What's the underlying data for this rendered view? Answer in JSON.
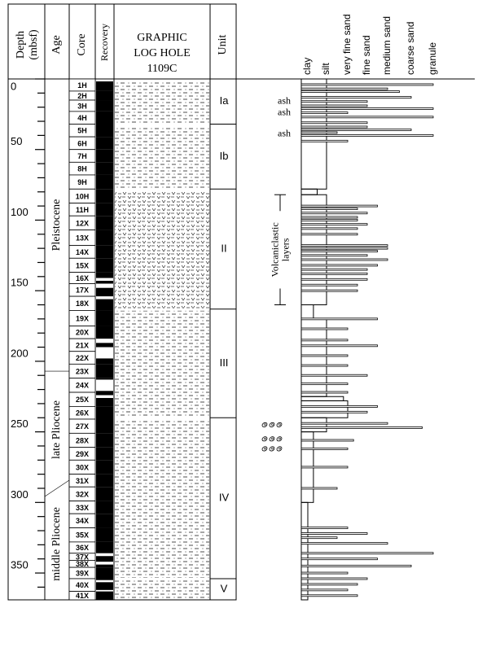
{
  "headers": {
    "depth": "Depth",
    "depth_unit": "(mbsf)",
    "age": "Age",
    "core": "Core",
    "recovery": "Recovery",
    "graphic": [
      "GRAPHIC",
      "LOG HOLE",
      "1109C"
    ],
    "unit": "Unit"
  },
  "depth": {
    "lim": [
      0,
      369
    ],
    "ticks": [
      0,
      50,
      100,
      150,
      200,
      250,
      300,
      350
    ],
    "minor_ticks": [
      10,
      20,
      30,
      40,
      60,
      70,
      80,
      90,
      110,
      120,
      130,
      140,
      160,
      170,
      180,
      190,
      210,
      220,
      230,
      240,
      260,
      270,
      280,
      290,
      310,
      320,
      330,
      340,
      360
    ]
  },
  "ages": [
    {
      "name": "Pleistocene",
      "top": 0
    },
    {
      "name": "late Pliocene",
      "top": 207
    },
    {
      "name": "middle Pliocene",
      "top": 290
    }
  ],
  "cores": [
    {
      "label": "1H",
      "top": 0
    },
    {
      "label": "2H",
      "top": 8.6
    },
    {
      "label": "3H",
      "top": 15
    },
    {
      "label": "4H",
      "top": 23
    },
    {
      "label": "5H",
      "top": 32
    },
    {
      "label": "6H",
      "top": 41
    },
    {
      "label": "7H",
      "top": 50
    },
    {
      "label": "8H",
      "top": 59
    },
    {
      "label": "9H",
      "top": 68
    },
    {
      "label": "10H",
      "top": 78
    },
    {
      "label": "11H",
      "top": 88
    },
    {
      "label": "12X",
      "top": 97
    },
    {
      "label": "13X",
      "top": 107
    },
    {
      "label": "14X",
      "top": 118
    },
    {
      "label": "15X",
      "top": 127
    },
    {
      "label": "16X",
      "top": 137
    },
    {
      "label": "17X",
      "top": 145
    },
    {
      "label": "18X",
      "top": 154
    },
    {
      "label": "19X",
      "top": 164
    },
    {
      "label": "20X",
      "top": 175
    },
    {
      "label": "21X",
      "top": 184
    },
    {
      "label": "22X",
      "top": 193
    },
    {
      "label": "23X",
      "top": 202
    },
    {
      "label": "24X",
      "top": 212
    },
    {
      "label": "25X",
      "top": 222
    },
    {
      "label": "26X",
      "top": 232
    },
    {
      "label": "27X",
      "top": 241
    },
    {
      "label": "28X",
      "top": 251
    },
    {
      "label": "29X",
      "top": 261
    },
    {
      "label": "30X",
      "top": 270
    },
    {
      "label": "31X",
      "top": 280
    },
    {
      "label": "32X",
      "top": 289
    },
    {
      "label": "33X",
      "top": 299
    },
    {
      "label": "34X",
      "top": 308
    },
    {
      "label": "35X",
      "top": 318
    },
    {
      "label": "36X",
      "top": 328
    },
    {
      "label": "37X",
      "top": 336
    },
    {
      "label": "38X",
      "top": 341
    },
    {
      "label": "39X",
      "top": 346
    },
    {
      "label": "40X",
      "top": 354
    },
    {
      "label": "41X",
      "top": 363
    }
  ],
  "recovery_gaps": [
    [
      141,
      143
    ],
    [
      145,
      148
    ],
    [
      154,
      156
    ],
    [
      184,
      187
    ],
    [
      190,
      198
    ],
    [
      213,
      221
    ],
    [
      224,
      226
    ],
    [
      336,
      338
    ],
    [
      342,
      344
    ],
    [
      355,
      356.5
    ],
    [
      362,
      363
    ]
  ],
  "units": [
    {
      "label": "Ia",
      "top": 0
    },
    {
      "label": "Ib",
      "top": 32
    },
    {
      "label": "II",
      "top": 78
    },
    {
      "label": "III",
      "top": 163
    },
    {
      "label": "IV",
      "top": 240
    },
    {
      "label": "V",
      "top": 354
    }
  ],
  "lithology": [
    {
      "top": 0,
      "pattern": "dashes"
    },
    {
      "top": 78,
      "pattern": "volcanic"
    },
    {
      "top": 163,
      "pattern": "dashes"
    }
  ],
  "grain_size": {
    "classes": [
      "clay",
      "silt",
      "very fine sand",
      "fine sand",
      "medium sand",
      "coarse sand",
      "granule"
    ],
    "intervals": [
      [
        0,
        78,
        2
      ],
      [
        78,
        82,
        1.5
      ],
      [
        82,
        160,
        2
      ],
      [
        160,
        170,
        1.3
      ],
      [
        170,
        225,
        2
      ],
      [
        225,
        228,
        2.8
      ],
      [
        228,
        240,
        3
      ],
      [
        240,
        250,
        2
      ],
      [
        250,
        300,
        1.3
      ],
      [
        300,
        369,
        1
      ]
    ],
    "beds": [
      [
        4,
        7
      ],
      [
        7,
        5
      ],
      [
        9,
        5.5
      ],
      [
        13,
        6
      ],
      [
        16,
        4
      ],
      [
        19,
        4
      ],
      [
        21,
        7
      ],
      [
        24,
        3
      ],
      [
        27,
        7
      ],
      [
        31,
        4
      ],
      [
        34,
        4
      ],
      [
        36,
        6
      ],
      [
        38,
        2.5
      ],
      [
        40,
        7
      ],
      [
        44,
        3
      ],
      [
        90,
        4.5
      ],
      [
        92,
        3.5
      ],
      [
        95,
        4
      ],
      [
        98,
        3.5
      ],
      [
        100,
        3.5
      ],
      [
        103,
        4
      ],
      [
        106,
        3.5
      ],
      [
        110,
        3.5
      ],
      [
        118,
        5
      ],
      [
        120,
        5
      ],
      [
        122,
        4.5
      ],
      [
        125,
        4
      ],
      [
        128,
        5
      ],
      [
        132,
        4.5
      ],
      [
        135,
        4
      ],
      [
        138,
        4
      ],
      [
        142,
        4
      ],
      [
        146,
        3.5
      ],
      [
        150,
        3.5
      ],
      [
        170,
        4.5
      ],
      [
        177,
        3
      ],
      [
        185,
        3
      ],
      [
        189,
        4.5
      ],
      [
        196,
        3
      ],
      [
        203,
        3
      ],
      [
        210,
        4
      ],
      [
        216,
        3
      ],
      [
        222,
        3
      ],
      [
        232,
        4.5
      ],
      [
        236,
        4
      ],
      [
        244,
        5
      ],
      [
        247,
        6.5
      ],
      [
        256,
        3.3
      ],
      [
        262,
        3
      ],
      [
        275,
        3
      ],
      [
        290,
        2.5
      ],
      [
        318,
        3
      ],
      [
        322,
        4
      ],
      [
        325,
        2.5
      ],
      [
        329,
        5
      ],
      [
        336,
        7
      ],
      [
        340,
        4.5
      ],
      [
        345,
        6
      ],
      [
        350,
        3
      ],
      [
        354,
        4
      ],
      [
        358,
        3.5
      ],
      [
        362,
        3
      ],
      [
        366,
        3.5
      ]
    ]
  },
  "annotations": {
    "ash": [
      {
        "label": "ash",
        "depth": 16
      },
      {
        "label": "ash",
        "depth": 24
      },
      {
        "label": "ash",
        "depth": 39
      }
    ],
    "volcaniclastic": {
      "label": [
        "Volcaniclastic",
        "layers"
      ],
      "top": 82,
      "bottom": 160
    },
    "shells": [
      245,
      255,
      262
    ]
  }
}
